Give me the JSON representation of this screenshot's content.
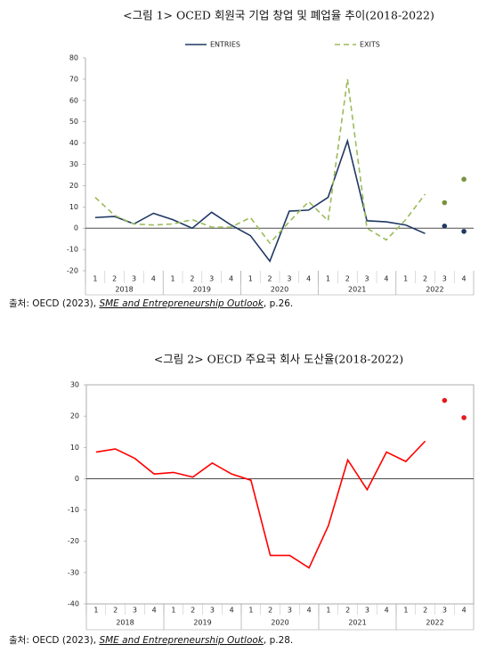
{
  "chart_data": [
    {
      "type": "line",
      "title": "<그림 1> OCED 회원국 기업 창업 및 폐업율 추이(2018-2022)",
      "categories": [
        "1",
        "2",
        "3",
        "4",
        "1",
        "2",
        "3",
        "4",
        "1",
        "2",
        "3",
        "4",
        "1",
        "2",
        "3",
        "4",
        "1",
        "2",
        "3",
        "4"
      ],
      "groups": [
        "2018",
        "2019",
        "2020",
        "2021",
        "2022"
      ],
      "series": [
        {
          "name": "ENTRIES",
          "color": "#1f3864",
          "dash": false,
          "values": [
            5,
            5.5,
            2,
            7,
            4,
            0,
            7.5,
            1.5,
            -3.5,
            -15.5,
            8,
            8.5,
            14.5,
            41,
            3.5,
            3,
            1.5,
            -2.5,
            null,
            null
          ],
          "markers": [
            null,
            null,
            null,
            null,
            null,
            null,
            null,
            null,
            null,
            null,
            null,
            null,
            null,
            null,
            null,
            null,
            null,
            null,
            1,
            -1.5
          ],
          "marker_color": "#1f3864"
        },
        {
          "name": "EXITS",
          "color": "#9bbb59",
          "dash": true,
          "values": [
            14.5,
            6,
            2,
            1.5,
            2,
            4,
            0.5,
            0.5,
            5,
            -7,
            3,
            12.5,
            3.5,
            70,
            0,
            -5.5,
            4,
            16,
            null,
            null
          ],
          "markers": [
            null,
            null,
            null,
            null,
            null,
            null,
            null,
            null,
            null,
            null,
            null,
            null,
            null,
            null,
            null,
            null,
            null,
            null,
            12,
            23
          ],
          "marker_color": "#77933c"
        }
      ],
      "ylim": [
        -20,
        80
      ],
      "yticks": [
        -20,
        -10,
        0,
        10,
        20,
        30,
        40,
        50,
        60,
        70,
        80
      ],
      "legend": "top",
      "frame": false
    },
    {
      "type": "line",
      "title": "<그림 2> OECD 주요국 회사 도산율(2018-2022)",
      "categories": [
        "1",
        "2",
        "3",
        "4",
        "1",
        "2",
        "3",
        "4",
        "1",
        "2",
        "3",
        "4",
        "1",
        "2",
        "3",
        "4",
        "1",
        "2",
        "3",
        "4"
      ],
      "groups": [
        "2018",
        "2019",
        "2020",
        "2021",
        "2022"
      ],
      "color": "#ff0000",
      "dash": false,
      "values": [
        8.5,
        9.5,
        6.5,
        1.5,
        2,
        0.5,
        5,
        1.5,
        -0.5,
        -24.5,
        -24.5,
        -28.5,
        -15,
        6,
        -3.5,
        8.5,
        5.5,
        12,
        null,
        null
      ],
      "markers": [
        null,
        null,
        null,
        null,
        null,
        null,
        null,
        null,
        null,
        null,
        null,
        null,
        null,
        null,
        null,
        null,
        null,
        null,
        25,
        19.5
      ],
      "marker_color": "#e41a1c",
      "ylim": [
        -40,
        30
      ],
      "yticks": [
        -40,
        -30,
        -20,
        -10,
        0,
        10,
        20,
        30
      ],
      "frame": true
    }
  ],
  "sources": [
    {
      "prefix": "출처: OECD (2023), ",
      "title": "SME and Entrepreneurship Outlook",
      "suffix": ", p.26."
    },
    {
      "prefix": "출처: OECD (2023), ",
      "title": "SME and Entrepreneurship Outlook",
      "suffix": ", p.28."
    }
  ]
}
